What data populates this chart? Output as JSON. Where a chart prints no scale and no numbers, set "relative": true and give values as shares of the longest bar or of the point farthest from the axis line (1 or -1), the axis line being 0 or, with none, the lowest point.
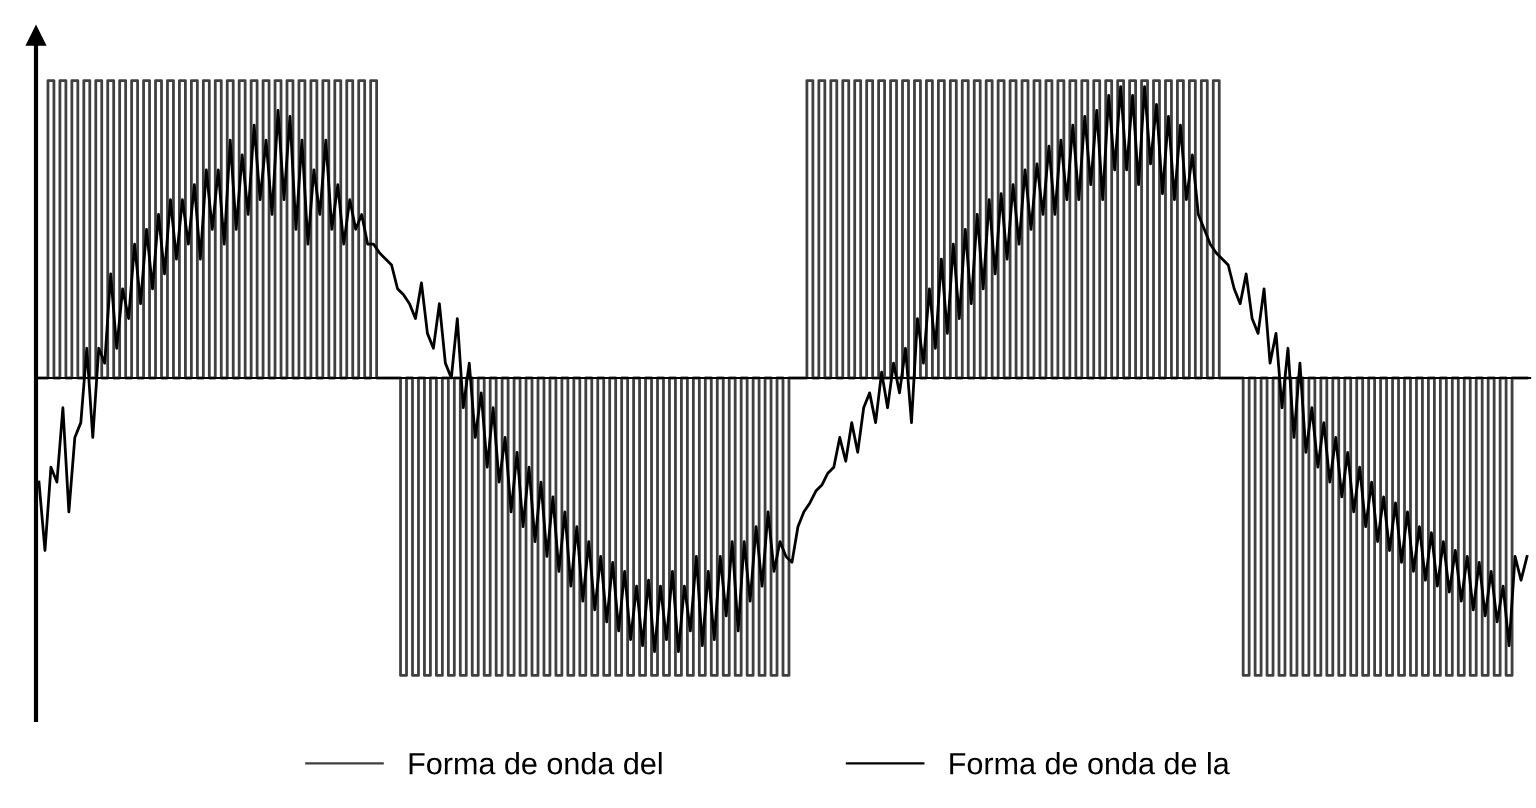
{
  "chart_data": {
    "type": "line",
    "relative": true,
    "legend": "bottom",
    "tick_labels": false,
    "categories": [
      null,
      null,
      null,
      null,
      null,
      null,
      null,
      null,
      null,
      null,
      null,
      null,
      null,
      null,
      null,
      null,
      null,
      null,
      null,
      null,
      null,
      null,
      null,
      null,
      null,
      null,
      null,
      null,
      null,
      null,
      null,
      null,
      null,
      null,
      null,
      null,
      null,
      null,
      null,
      null,
      null,
      null,
      null,
      null,
      null,
      null,
      null,
      null,
      null,
      null,
      null,
      null,
      null,
      null,
      null,
      null,
      null,
      null,
      null,
      null,
      null,
      null,
      null,
      null,
      null,
      null,
      null,
      null,
      null,
      null,
      null,
      null,
      null,
      null,
      null,
      null,
      null,
      null,
      null,
      null,
      null,
      null,
      null,
      null,
      null,
      null,
      null,
      null,
      null,
      null,
      null,
      null,
      null,
      null,
      null,
      null,
      null,
      null,
      null,
      null,
      null,
      null,
      null,
      null,
      null,
      null,
      null,
      null,
      null,
      null,
      null,
      null,
      null,
      null,
      null,
      null,
      null,
      null,
      null,
      null,
      null,
      null,
      null,
      null,
      null,
      null,
      null,
      null,
      null,
      null,
      null,
      null,
      null,
      null,
      null,
      null,
      null,
      null,
      null,
      null,
      null,
      null,
      null,
      null,
      null,
      null,
      null,
      null,
      null,
      null,
      null,
      null,
      null,
      null,
      null,
      null,
      null,
      null,
      null,
      null,
      null,
      null,
      null,
      null,
      null,
      null,
      null,
      null,
      null,
      null,
      null,
      null,
      null,
      null,
      null,
      null,
      null,
      null,
      null,
      null,
      null,
      null,
      null,
      null,
      null,
      null,
      null,
      null,
      null,
      null,
      null,
      null,
      null,
      null,
      null,
      null,
      null,
      null,
      null,
      null,
      null,
      null,
      null,
      null,
      null,
      null,
      null,
      null,
      null,
      null,
      null,
      null,
      null,
      null,
      null,
      null,
      null,
      null,
      null,
      null,
      null,
      null,
      null,
      null,
      null,
      null,
      null,
      null,
      null,
      null,
      null,
      null,
      null,
      null,
      null,
      null,
      null,
      null,
      null,
      null,
      null,
      null,
      null,
      null,
      null,
      null,
      null,
      null,
      null,
      null
    ],
    "series": [
      {
        "name": "Forma de onda del",
        "type": "step",
        "color": "#404040",
        "values": [
          0,
          0,
          1,
          0,
          1,
          0,
          1,
          0,
          1,
          0,
          1,
          0,
          1,
          0,
          1,
          0,
          1,
          0,
          1,
          0,
          1,
          0,
          1,
          0,
          1,
          0,
          1,
          0,
          1,
          0,
          1,
          0,
          1,
          0,
          1,
          0,
          1,
          0,
          1,
          0,
          1,
          0,
          1,
          0,
          1,
          0,
          1,
          0,
          1,
          0,
          1,
          0,
          1,
          0,
          1,
          0,
          1,
          0,
          0,
          0,
          0,
          -1,
          0,
          -1,
          0,
          -1,
          0,
          -1,
          0,
          -1,
          0,
          -1,
          0,
          -1,
          0,
          -1,
          0,
          -1,
          0,
          -1,
          0,
          -1,
          0,
          -1,
          0,
          -1,
          0,
          -1,
          0,
          -1,
          0,
          -1,
          0,
          -1,
          0,
          -1,
          0,
          -1,
          0,
          -1,
          0,
          -1,
          0,
          -1,
          0,
          -1,
          0,
          -1,
          0,
          -1,
          0,
          -1,
          0,
          -1,
          0,
          -1,
          0,
          -1,
          0,
          -1,
          0,
          -1,
          0,
          -1,
          0,
          -1,
          0,
          0,
          0,
          1,
          0,
          1,
          0,
          1,
          0,
          1,
          0,
          1,
          0,
          1,
          0,
          1,
          0,
          1,
          0,
          1,
          0,
          1,
          0,
          1,
          0,
          1,
          0,
          1,
          0,
          1,
          0,
          1,
          0,
          1,
          0,
          1,
          0,
          1,
          0,
          1,
          0,
          1,
          0,
          1,
          0,
          1,
          0,
          1,
          0,
          1,
          0,
          1,
          0,
          1,
          0,
          1,
          0,
          1,
          0,
          1,
          0,
          1,
          0,
          1,
          0,
          1,
          0,
          1,
          0,
          1,
          0,
          1,
          0,
          0,
          0,
          0,
          -1,
          0,
          -1,
          0,
          -1,
          0,
          -1,
          0,
          -1,
          0,
          -1,
          0,
          -1,
          0,
          -1,
          0,
          -1,
          0,
          -1,
          0,
          -1,
          0,
          -1,
          0,
          -1,
          0,
          -1,
          0,
          -1,
          0,
          -1,
          0,
          -1,
          0,
          -1,
          0,
          -1,
          0,
          -1,
          0,
          -1,
          0,
          -1,
          0,
          -1,
          0,
          0,
          0
        ]
      },
      {
        "name": "Forma de onda de la",
        "color": "#000000",
        "values": [
          -0.35,
          -0.58,
          -0.3,
          -0.35,
          -0.1,
          -0.45,
          -0.2,
          -0.15,
          0.1,
          -0.2,
          0.1,
          0.05,
          0.35,
          0.1,
          0.3,
          0.2,
          0.45,
          0.25,
          0.5,
          0.3,
          0.55,
          0.35,
          0.6,
          0.4,
          0.6,
          0.45,
          0.65,
          0.4,
          0.7,
          0.5,
          0.7,
          0.45,
          0.8,
          0.5,
          0.75,
          0.55,
          0.85,
          0.6,
          0.8,
          0.55,
          0.9,
          0.6,
          0.88,
          0.5,
          0.8,
          0.45,
          0.7,
          0.55,
          0.8,
          0.5,
          0.65,
          0.45,
          0.6,
          0.5,
          0.55,
          0.45,
          0.45,
          0.42,
          0.4,
          0.38,
          0.3,
          0.28,
          0.25,
          0.2,
          0.32,
          0.15,
          0.1,
          0.25,
          0.05,
          0.0,
          0.2,
          -0.1,
          0.05,
          -0.2,
          -0.05,
          -0.3,
          -0.1,
          -0.35,
          -0.2,
          -0.45,
          -0.25,
          -0.5,
          -0.3,
          -0.55,
          -0.35,
          -0.6,
          -0.4,
          -0.65,
          -0.45,
          -0.7,
          -0.5,
          -0.75,
          -0.55,
          -0.78,
          -0.6,
          -0.82,
          -0.62,
          -0.85,
          -0.65,
          -0.88,
          -0.7,
          -0.9,
          -0.68,
          -0.92,
          -0.7,
          -0.88,
          -0.65,
          -0.92,
          -0.7,
          -0.85,
          -0.6,
          -0.9,
          -0.65,
          -0.88,
          -0.6,
          -0.8,
          -0.55,
          -0.85,
          -0.55,
          -0.75,
          -0.5,
          -0.7,
          -0.45,
          -0.65,
          -0.55,
          -0.6,
          -0.62,
          -0.5,
          -0.45,
          -0.42,
          -0.38,
          -0.36,
          -0.32,
          -0.3,
          -0.2,
          -0.28,
          -0.15,
          -0.25,
          -0.1,
          -0.05,
          -0.15,
          0.02,
          -0.1,
          0.05,
          -0.05,
          0.1,
          -0.15,
          0.2,
          0.05,
          0.3,
          0.1,
          0.4,
          0.15,
          0.45,
          0.2,
          0.5,
          0.25,
          0.55,
          0.3,
          0.6,
          0.35,
          0.62,
          0.4,
          0.65,
          0.45,
          0.7,
          0.5,
          0.72,
          0.55,
          0.78,
          0.55,
          0.8,
          0.6,
          0.85,
          0.6,
          0.88,
          0.65,
          0.9,
          0.6,
          0.95,
          0.7,
          0.98,
          0.7,
          0.95,
          0.65,
          0.98,
          0.72,
          0.92,
          0.62,
          0.88,
          0.6,
          0.85,
          0.6,
          0.75,
          0.55,
          0.5,
          0.45,
          0.42,
          0.4,
          0.38,
          0.3,
          0.25,
          0.35,
          0.2,
          0.15,
          0.3,
          0.05,
          0.15,
          -0.1,
          0.1,
          -0.2,
          0.05,
          -0.25,
          -0.1,
          -0.3,
          -0.15,
          -0.35,
          -0.2,
          -0.4,
          -0.25,
          -0.45,
          -0.3,
          -0.5,
          -0.35,
          -0.55,
          -0.4,
          -0.58,
          -0.42,
          -0.62,
          -0.45,
          -0.65,
          -0.5,
          -0.68,
          -0.52,
          -0.7,
          -0.55,
          -0.72,
          -0.58,
          -0.75,
          -0.6,
          -0.78,
          -0.62,
          -0.8,
          -0.65,
          -0.82,
          -0.7,
          -0.9,
          -0.6,
          -0.68,
          -0.6
        ]
      }
    ]
  }
}
